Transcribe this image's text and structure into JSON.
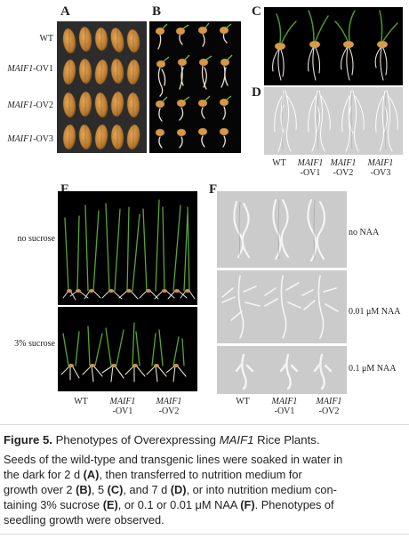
{
  "panels": {
    "A": {
      "letter": "A",
      "rows": [
        {
          "label_it": "",
          "label_rest": "WT"
        },
        {
          "label_it": "MAIF1",
          "label_rest": "-OV1"
        },
        {
          "label_it": "MAIF1",
          "label_rest": "-OV2"
        },
        {
          "label_it": "MAIF1",
          "label_rest": "-OV3"
        }
      ]
    },
    "B": {
      "letter": "B"
    },
    "C": {
      "letter": "C"
    },
    "D": {
      "letter": "D",
      "cols": [
        {
          "l1": "WT",
          "l2": ""
        },
        {
          "l1": "MAIF1",
          "l2": "-OV1"
        },
        {
          "l1": "MAIF1",
          "l2": "-OV2"
        },
        {
          "l1": "MAIF1",
          "l2": "-OV3"
        }
      ]
    },
    "E": {
      "letter": "E",
      "rows": [
        "no sucrose",
        "3% sucrose"
      ],
      "cols": [
        {
          "l1": "WT",
          "l2": ""
        },
        {
          "l1": "MAIF1",
          "l2": "-OV1"
        },
        {
          "l1": "MAIF1",
          "l2": "-OV2"
        }
      ]
    },
    "F": {
      "letter": "F",
      "rows": [
        "no NAA",
        "0.01 μM NAA",
        "0.1 μM NAA"
      ],
      "cols": [
        {
          "l1": "WT",
          "l2": ""
        },
        {
          "l1": "MAIF1",
          "l2": "-OV1"
        },
        {
          "l1": "MAIF1",
          "l2": "-OV2"
        }
      ]
    }
  },
  "caption": {
    "prefix": "Figure 5.",
    "title_before": "Phenotypes of Overexpressing ",
    "title_gene": "MAIF1",
    "title_after": " Rice Plants.",
    "body": [
      {
        "t": "Seeds of the wild-type and transgenic lines were soaked in water in",
        "b": false
      },
      {
        "t": "the dark for 2 d ",
        "b": false
      },
      {
        "t": "(A)",
        "b": true
      },
      {
        "t": ", then transferred to nutrition medium for",
        "b": false
      },
      {
        "t": "growth over 2 ",
        "b": false
      },
      {
        "t": "(B)",
        "b": true
      },
      {
        "t": ", 5 ",
        "b": false
      },
      {
        "t": "(C)",
        "b": true
      },
      {
        "t": ", and 7 d ",
        "b": false
      },
      {
        "t": "(D)",
        "b": true
      },
      {
        "t": ", or into nutrition medium con-",
        "b": false
      },
      {
        "t": "taining 3% sucrose ",
        "b": false
      },
      {
        "t": "(E)",
        "b": true
      },
      {
        "t": ", or 0.1 or 0.01 μM NAA ",
        "b": false
      },
      {
        "t": "(F)",
        "b": true
      },
      {
        "t": ". Phenotypes of",
        "b": false
      },
      {
        "t": "seedling growth were observed.",
        "b": false
      }
    ]
  }
}
